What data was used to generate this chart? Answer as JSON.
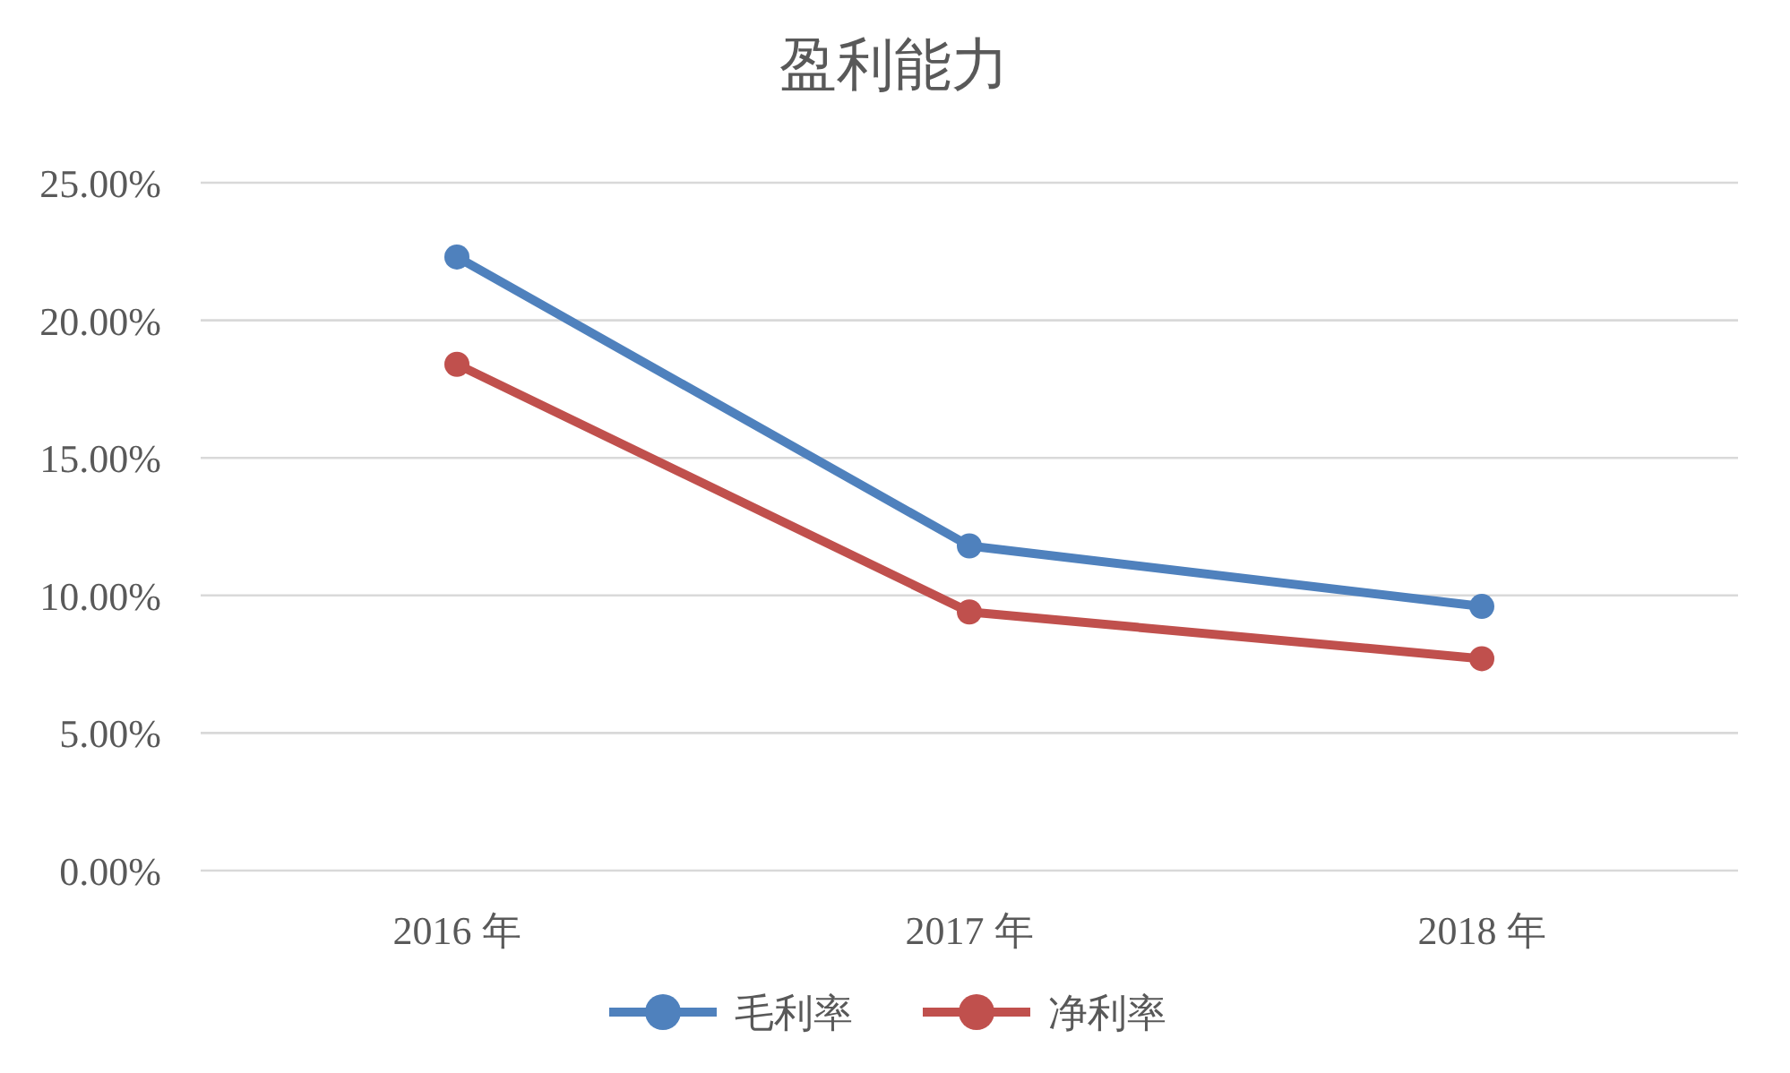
{
  "chart_data": {
    "type": "line",
    "title": "盈利能力",
    "categories": [
      "2016 年",
      "2017 年",
      "2018 年"
    ],
    "series": [
      {
        "name": "毛利率",
        "color": "#4f81bd",
        "values": [
          22.3,
          11.8,
          9.6
        ]
      },
      {
        "name": "净利率",
        "color": "#c0504d",
        "values": [
          18.4,
          9.4,
          7.7
        ]
      }
    ],
    "ylim": [
      0,
      25
    ],
    "yticks": [
      {
        "value": 0,
        "label": "0.00%"
      },
      {
        "value": 5,
        "label": "5.00%"
      },
      {
        "value": 10,
        "label": "10.00%"
      },
      {
        "value": 15,
        "label": "15.00%"
      },
      {
        "value": 20,
        "label": "20.00%"
      },
      {
        "value": 25,
        "label": "25.00%"
      }
    ],
    "grid": "y",
    "legend": "bottom",
    "marker": "circle"
  }
}
